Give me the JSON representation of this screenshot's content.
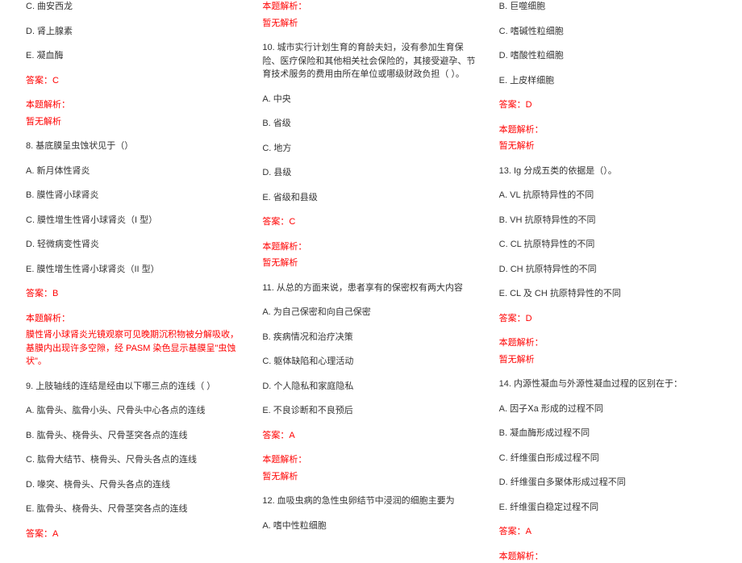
{
  "col1": {
    "q7_opts": [
      "C. 曲安西龙",
      "D. 肾上腺素",
      "E. 凝血酶"
    ],
    "q7_answer": "答案：C",
    "q7_analysis_label": "本题解析：",
    "q7_analysis_text": "暂无解析",
    "q8_title": "8. 基底膜呈虫蚀状见于（）",
    "q8_opts": [
      "A. 新月体性肾炎",
      "B. 膜性肾小球肾炎",
      "C. 膜性增生性肾小球肾炎（I 型）",
      "D. 轻微病变性肾炎",
      "E. 膜性增生性肾小球肾炎（II 型）"
    ],
    "q8_answer": "答案：B",
    "q8_analysis_label": "本题解析：",
    "q8_analysis_text": "膜性肾小球肾炎光镜观察可见晚期沉积物被分解吸收，基膜内出现许多空隙，经 PASM 染色显示基膜呈\"虫蚀状\"。",
    "q9_title": "9. 上肢轴线的连结是经由以下哪三点的连线（  ）",
    "q9_opts": [
      "A. 肱骨头、肱骨小头、尺骨头中心各点的连线",
      "B. 肱骨头、桡骨头、尺骨茎突各点的连线",
      "C. 肱骨大结节、桡骨头、尺骨头各点的连线",
      "D. 喙突、桡骨头、尺骨头各点的连线",
      "E. 肱骨头、桡骨头、尺骨茎突各点的连线"
    ],
    "q9_answer": "答案：A"
  },
  "col2": {
    "q9_analysis_label": "本题解析：",
    "q9_analysis_text": "暂无解析",
    "q10_title": "10. 城市实行计划生育的育龄夫妇，没有参加生育保险、医疗保险和其他相关社会保险的，其接受避孕、节育技术服务的费用由所在单位或哪级财政负担（   ）。",
    "q10_opts": [
      "A. 中央",
      "B. 省级",
      "C. 地方",
      "D. 县级",
      "E. 省级和县级"
    ],
    "q10_answer": "答案：C",
    "q10_analysis_label": "本题解析：",
    "q10_analysis_text": "暂无解析",
    "q11_title": "11. 从总的方面来说，患者享有的保密权有两大内容",
    "q11_opts": [
      "A. 为自己保密和向自己保密",
      "B. 疾病情况和治疗决策",
      "C. 躯体缺陷和心理活动",
      "D. 个人隐私和家庭隐私",
      "E. 不良诊断和不良预后"
    ],
    "q11_answer": "答案：A",
    "q11_analysis_label": "本题解析：",
    "q11_analysis_text": "暂无解析",
    "q12_title": "12. 血吸虫病的急性虫卵结节中浸润的细胞主要为",
    "q12_opts": [
      "A. 嗜中性粒细胞"
    ]
  },
  "col3": {
    "q12_more": [
      "B. 巨噬细胞",
      "C. 嗜碱性粒细胞",
      "D. 嗜酸性粒细胞",
      "E. 上皮样细胞"
    ],
    "q12_answer": "答案：D",
    "q12_analysis_label": "本题解析：",
    "q12_analysis_text": "暂无解析",
    "q13_title": "13. Ig 分成五类的依据是（）。",
    "q13_opts": [
      "A. VL 抗原特异性的不同",
      "B. VH 抗原特异性的不同",
      "C. CL 抗原特异性的不同",
      "D. CH 抗原特异性的不同",
      "E. CL 及 CH 抗原特异性的不同"
    ],
    "q13_answer": "答案：D",
    "q13_analysis_label": "本题解析：",
    "q13_analysis_text": "暂无解析",
    "q14_title": "14. 内源性凝血与外源性凝血过程的区别在于：",
    "q14_opts": [
      "A. 因子Ⅹa 形成的过程不同",
      "B. 凝血酶形成过程不同",
      "C. 纤维蛋白形成过程不同",
      "D. 纤维蛋白多聚体形成过程不同",
      "E. 纤维蛋白稳定过程不同"
    ],
    "q14_answer": "答案：A",
    "q14_analysis_label": "本题解析："
  }
}
